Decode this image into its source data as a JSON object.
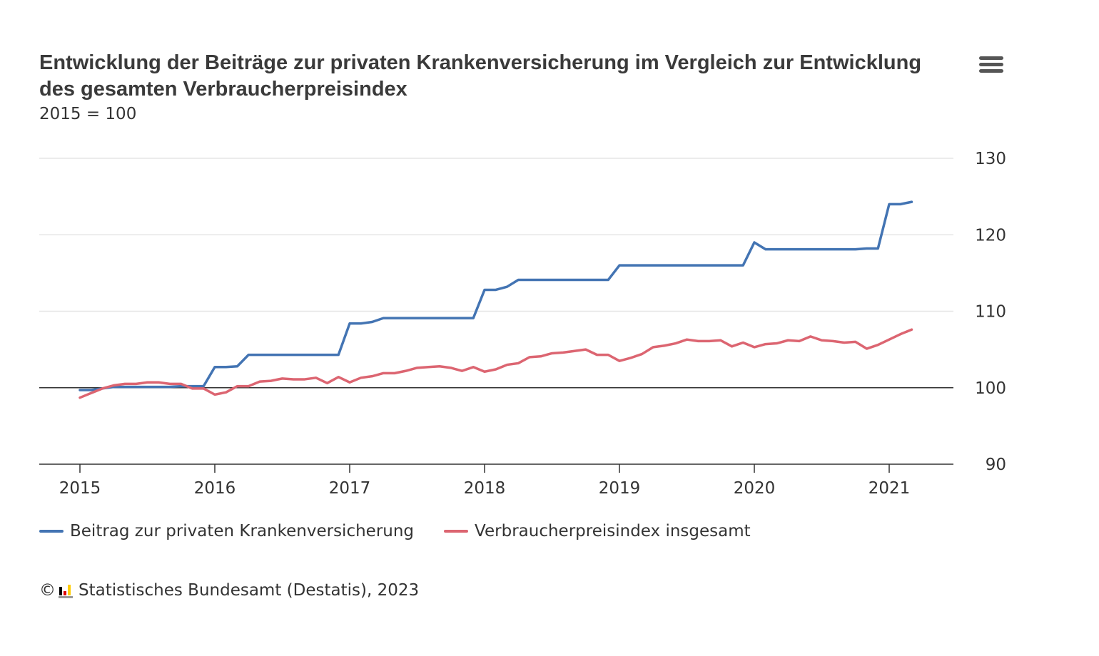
{
  "header": {
    "title": "Entwicklung der Beiträge zur privaten Krankenversicherung im Vergleich zur Entwicklung des gesamten Verbraucherpreisindex",
    "subtitle": "2015 = 100",
    "menu_icon": "hamburger-menu-icon"
  },
  "legend": {
    "items": [
      {
        "label": "Beitrag zur privaten Krankenversicherung",
        "color": "#4374b3"
      },
      {
        "label": "Verbraucherpreisindex insgesamt",
        "color": "#dc6571"
      }
    ]
  },
  "credits": {
    "copyright": "©",
    "text": "Statistisches Bundesamt (Destatis), 2023",
    "logo_icon": "destatis-logo-icon"
  },
  "colors": {
    "grid": "#e6e6e6",
    "axis": "#333333",
    "baseline": "#333333"
  },
  "chart_data": {
    "type": "line",
    "title": "Entwicklung der Beiträge zur privaten Krankenversicherung im Vergleich zur Entwicklung des gesamten Verbraucherpreisindex",
    "subtitle": "2015 = 100",
    "x_unit": "monthly, 2015-01 to 2021-03",
    "x_start": "2015-01",
    "xticks": [
      "2015",
      "2016",
      "2017",
      "2018",
      "2019",
      "2020",
      "2021"
    ],
    "ylim": [
      90,
      130
    ],
    "yticks": [
      90,
      100,
      110,
      120,
      130
    ],
    "y_axis_position": "right",
    "baseline": 100,
    "grid": true,
    "legend_position": "bottom-left",
    "series": [
      {
        "name": "Beitrag zur privaten Krankenversicherung",
        "color": "#4374b3",
        "values": [
          99.7,
          99.7,
          99.9,
          100.1,
          100.1,
          100.1,
          100.1,
          100.1,
          100.1,
          100.2,
          100.2,
          100.2,
          102.7,
          102.7,
          102.8,
          104.3,
          104.3,
          104.3,
          104.3,
          104.3,
          104.3,
          104.3,
          104.3,
          104.3,
          108.4,
          108.4,
          108.6,
          109.1,
          109.1,
          109.1,
          109.1,
          109.1,
          109.1,
          109.1,
          109.1,
          109.1,
          112.8,
          112.8,
          113.2,
          114.1,
          114.1,
          114.1,
          114.1,
          114.1,
          114.1,
          114.1,
          114.1,
          114.1,
          116.0,
          116.0,
          116.0,
          116.0,
          116.0,
          116.0,
          116.0,
          116.0,
          116.0,
          116.0,
          116.0,
          116.0,
          119.0,
          118.1,
          118.1,
          118.1,
          118.1,
          118.1,
          118.1,
          118.1,
          118.1,
          118.1,
          118.2,
          118.2,
          124.0,
          124.0,
          124.3
        ]
      },
      {
        "name": "Verbraucherpreisindex insgesamt",
        "color": "#dc6571",
        "values": [
          98.7,
          99.3,
          99.9,
          100.3,
          100.5,
          100.5,
          100.7,
          100.7,
          100.5,
          100.5,
          99.9,
          99.9,
          99.1,
          99.4,
          100.2,
          100.2,
          100.8,
          100.9,
          101.2,
          101.1,
          101.1,
          101.3,
          100.6,
          101.4,
          100.7,
          101.3,
          101.5,
          101.9,
          101.9,
          102.2,
          102.6,
          102.7,
          102.8,
          102.6,
          102.2,
          102.7,
          102.1,
          102.4,
          103.0,
          103.2,
          104.0,
          104.1,
          104.5,
          104.6,
          104.8,
          105.0,
          104.3,
          104.3,
          103.5,
          103.9,
          104.4,
          105.3,
          105.5,
          105.8,
          106.3,
          106.1,
          106.1,
          106.2,
          105.4,
          105.9,
          105.3,
          105.7,
          105.8,
          106.2,
          106.1,
          106.7,
          106.2,
          106.1,
          105.9,
          106.0,
          105.1,
          105.6,
          106.3,
          107.0,
          107.6
        ]
      }
    ]
  }
}
